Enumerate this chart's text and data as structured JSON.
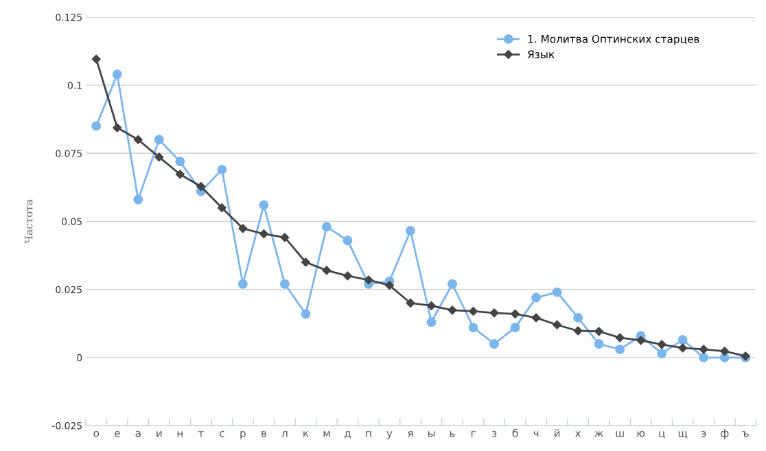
{
  "chart_data": {
    "type": "line",
    "ylabel": "Частота",
    "categories": [
      "о",
      "е",
      "а",
      "и",
      "н",
      "т",
      "с",
      "р",
      "в",
      "л",
      "к",
      "м",
      "д",
      "п",
      "у",
      "я",
      "ы",
      "ь",
      "г",
      "з",
      "б",
      "ч",
      "й",
      "х",
      "ж",
      "ш",
      "ю",
      "ц",
      "щ",
      "э",
      "ф",
      "ъ"
    ],
    "series": [
      {
        "name": "1. Молитва Оптинских старцев",
        "color": "#7cb5ec",
        "marker": "circle",
        "values": [
          0.085,
          0.104,
          0.058,
          0.08,
          0.072,
          0.061,
          0.069,
          0.027,
          0.056,
          0.027,
          0.016,
          0.048,
          0.043,
          0.027,
          0.028,
          0.0466,
          0.013,
          0.027,
          0.011,
          0.005,
          0.011,
          0.022,
          0.024,
          0.0146,
          0.005,
          0.003,
          0.008,
          0.0015,
          0.0065,
          0,
          0,
          0
        ]
      },
      {
        "name": "Язык",
        "color": "#434348",
        "marker": "diamond",
        "values": [
          0.1096,
          0.0844,
          0.08,
          0.0736,
          0.0673,
          0.0628,
          0.055,
          0.0474,
          0.0454,
          0.0441,
          0.035,
          0.032,
          0.03,
          0.0285,
          0.0265,
          0.02,
          0.019,
          0.0174,
          0.017,
          0.0164,
          0.016,
          0.0146,
          0.012,
          0.0098,
          0.0096,
          0.0073,
          0.0063,
          0.0048,
          0.0035,
          0.003,
          0.0023,
          0.0005
        ]
      }
    ],
    "ylim": [
      -0.025,
      0.125
    ],
    "yticks": [
      {
        "value": -0.025,
        "label": "-0.025"
      },
      0,
      0.025,
      0.05,
      0.075,
      {
        "value": 0.1,
        "label": "0.1"
      },
      0.125
    ],
    "grid": "y",
    "legend": "top right",
    "line_style": "solid"
  }
}
